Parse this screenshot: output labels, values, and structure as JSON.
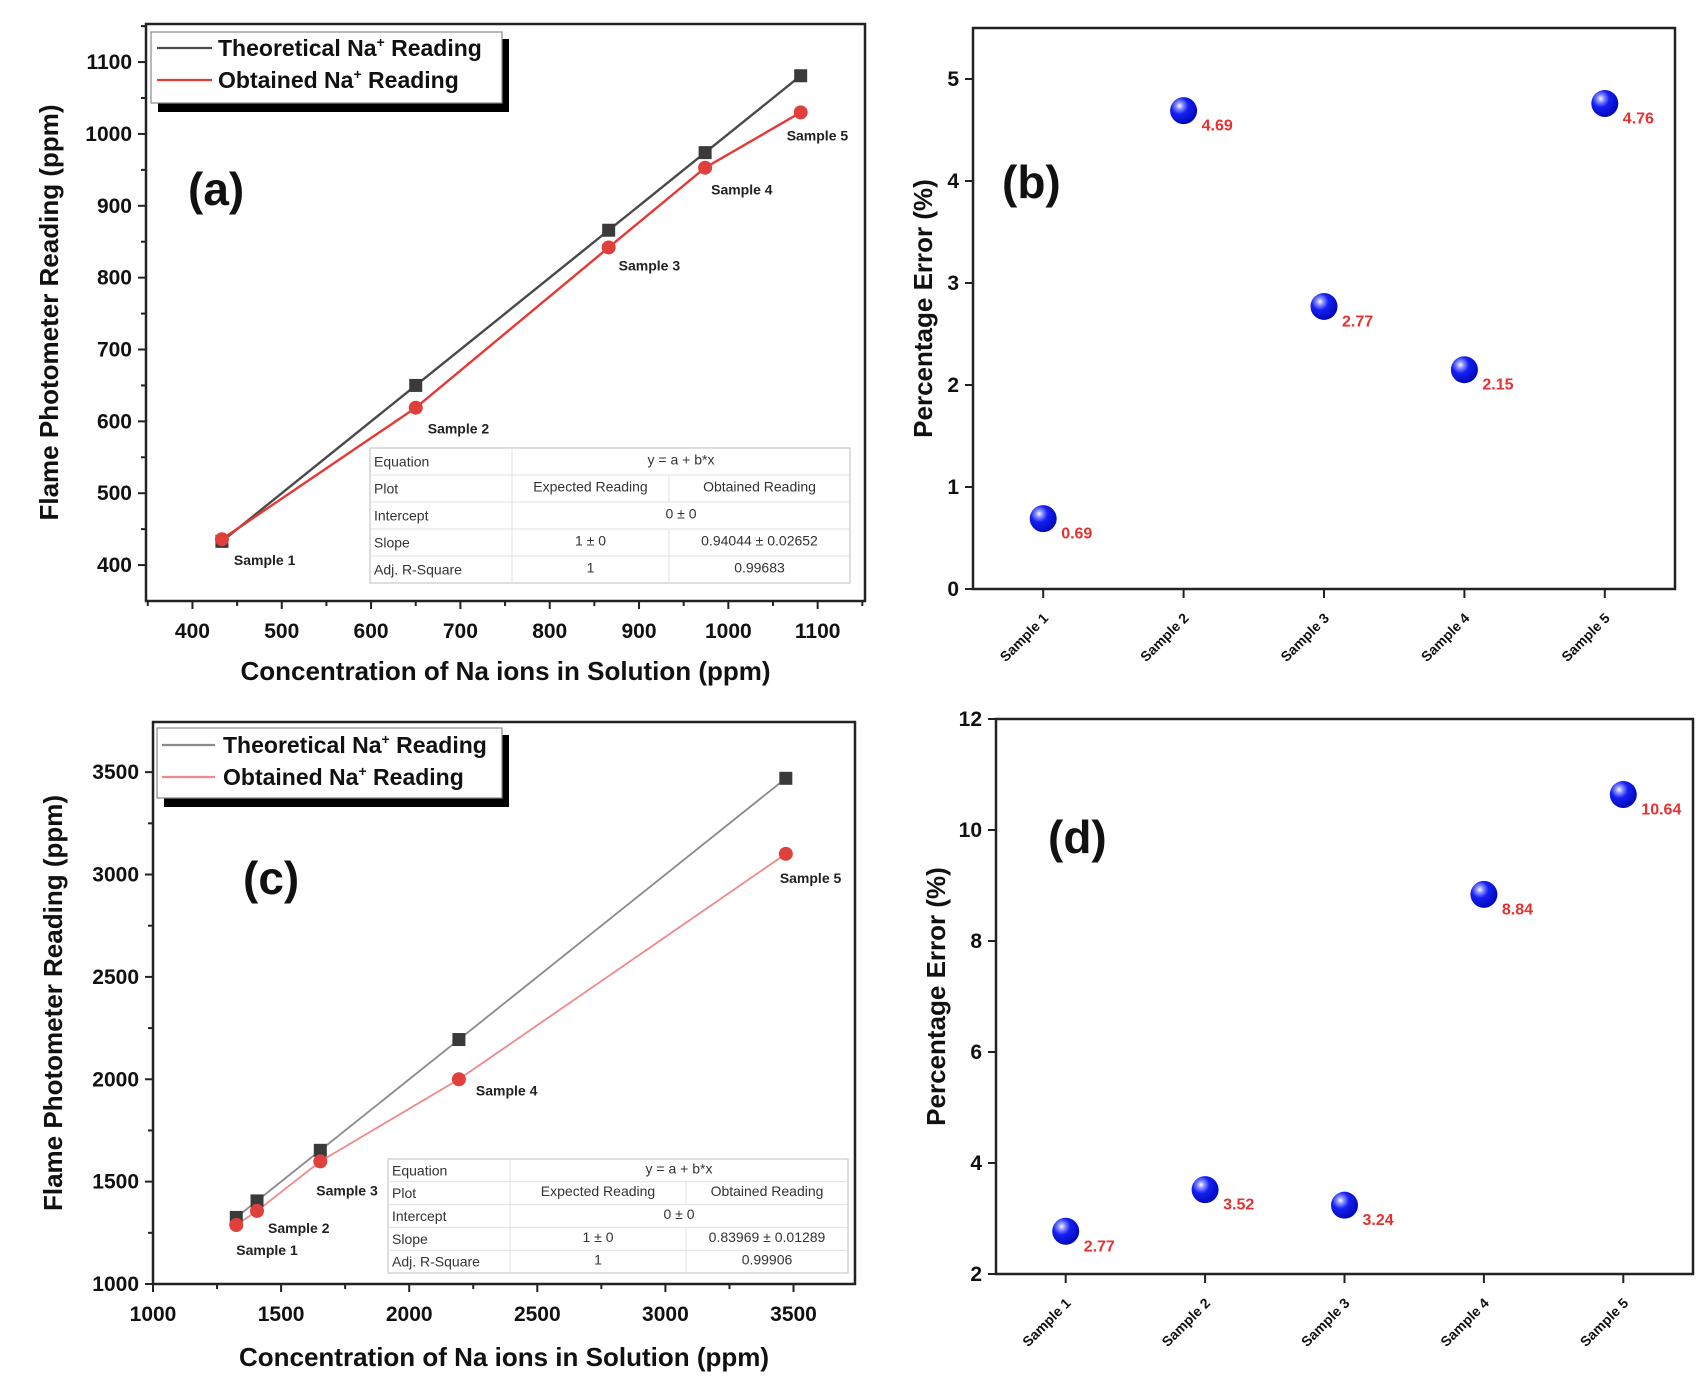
{
  "chart_data": [
    {
      "id": "a",
      "type": "line",
      "panel_label": "(a)",
      "xlabel": "Concentration of Na ions in Solution (ppm)",
      "ylabel": "Flame Photometer Reading (ppm)",
      "xlim": [
        348,
        1153
      ],
      "ylim": [
        350,
        1153
      ],
      "xticks": [
        400,
        500,
        600,
        700,
        800,
        900,
        1000,
        1100
      ],
      "yticks": [
        400,
        500,
        600,
        700,
        800,
        900,
        1000,
        1100
      ],
      "grid": false,
      "legend_position": "top-left",
      "series": [
        {
          "name": "Theoretical Na⁺ Reading",
          "legend_main": "Theoretical Na",
          "legend_sup": "+",
          "legend_tail": " Reading",
          "marker": "square",
          "color": "#3a3a3a",
          "line_color": "#4a4a4a",
          "x": [
            433,
            650,
            866,
            974,
            1081
          ],
          "y": [
            433,
            650,
            866,
            974,
            1081
          ]
        },
        {
          "name": "Obtained Na⁺ Reading",
          "legend_main": "Obtained Na",
          "legend_sup": "+",
          "legend_tail": " Reading",
          "marker": "circle",
          "color": "#e0403c",
          "line_color": "#e53935",
          "x": [
            433,
            650,
            866,
            974,
            1081
          ],
          "y": [
            436,
            619,
            842,
            953,
            1030
          ]
        }
      ],
      "point_labels": [
        "Sample 1",
        "Sample 2",
        "Sample 3",
        "Sample 4",
        "Sample 5"
      ],
      "fit_table": {
        "rows": [
          {
            "label": "Equation",
            "merged": "y = a + b*x"
          },
          {
            "label": "Plot",
            "cells": [
              "Expected Reading",
              "Obtained Reading"
            ]
          },
          {
            "label": "Intercept",
            "merged": "0 ± 0"
          },
          {
            "label": "Slope",
            "cells": [
              "1 ± 0",
              "0.94044 ± 0.02652"
            ]
          },
          {
            "label": "Adj. R-Square",
            "cells": [
              "1",
              "0.99683"
            ]
          }
        ]
      }
    },
    {
      "id": "b",
      "type": "scatter",
      "panel_label": "(b)",
      "xlabel": "",
      "ylabel": "Percentage Error (%)",
      "categories": [
        "Sample 1",
        "Sample 2",
        "Sample 3",
        "Sample 4",
        "Sample 5"
      ],
      "values": [
        0.69,
        4.69,
        2.77,
        2.15,
        4.76
      ],
      "value_labels": [
        "0.69",
        "4.69",
        "2.77",
        "2.15",
        "4.76"
      ],
      "ylim": [
        0,
        5.5
      ],
      "yticks": [
        0,
        1,
        2,
        3,
        4,
        5
      ],
      "grid": false,
      "marker_color": "#0a14f0",
      "label_color": "#e8312f"
    },
    {
      "id": "c",
      "type": "line",
      "panel_label": "(c)",
      "xlabel": "Concentration of Na ions in Solution (ppm)",
      "ylabel": "Flame Photometer Reading (ppm)",
      "xlim": [
        1000,
        3740
      ],
      "ylim": [
        1000,
        3745
      ],
      "xticks": [
        1000,
        1500,
        2000,
        2500,
        3000,
        3500
      ],
      "yticks": [
        1000,
        1500,
        2000,
        2500,
        3000,
        3500
      ],
      "grid": false,
      "legend_position": "top-left",
      "series": [
        {
          "name": "Theoretical Na⁺ Reading",
          "legend_main": "Theoretical Na",
          "legend_sup": "+",
          "legend_tail": " Reading",
          "marker": "square",
          "color": "#3a3a3a",
          "line_color": "#8a8a8a",
          "x": [
            1325,
            1406,
            1653,
            2194,
            3470
          ],
          "y": [
            1325,
            1406,
            1653,
            2194,
            3470
          ]
        },
        {
          "name": "Obtained Na⁺ Reading",
          "legend_main": "Obtained Na",
          "legend_sup": "+",
          "legend_tail": " Reading",
          "marker": "circle",
          "color": "#e0403c",
          "line_color": "#f08a8a",
          "x": [
            1325,
            1406,
            1653,
            2194,
            3470
          ],
          "y": [
            1288,
            1357,
            1599,
            2000,
            3101
          ]
        }
      ],
      "point_labels": [
        "Sample 1",
        "Sample 2",
        "Sample 3",
        "Sample 4",
        "Sample 5"
      ],
      "fit_table": {
        "rows": [
          {
            "label": "Equation",
            "merged": "y = a + b*x"
          },
          {
            "label": "Plot",
            "cells": [
              "Expected Reading",
              "Obtained Reading"
            ]
          },
          {
            "label": "Intercept",
            "merged": "0 ± 0"
          },
          {
            "label": "Slope",
            "cells": [
              "1 ± 0",
              "0.83969 ± 0.01289"
            ]
          },
          {
            "label": "Adj. R-Square",
            "cells": [
              "1",
              "0.99906"
            ]
          }
        ]
      }
    },
    {
      "id": "d",
      "type": "scatter",
      "panel_label": "(d)",
      "xlabel": "",
      "ylabel": "Percentage Error (%)",
      "categories": [
        "Sample 1",
        "Sample 2",
        "Sample 3",
        "Sample 4",
        "Sample 5"
      ],
      "values": [
        2.77,
        3.52,
        3.24,
        8.84,
        10.64
      ],
      "value_labels": [
        "2.77",
        "3.52",
        "3.24",
        "8.84",
        "10.64"
      ],
      "ylim": [
        2,
        12
      ],
      "yticks": [
        2,
        4,
        6,
        8,
        10,
        12
      ],
      "grid": false,
      "marker_color": "#0a14f0",
      "label_color": "#e8312f"
    }
  ]
}
